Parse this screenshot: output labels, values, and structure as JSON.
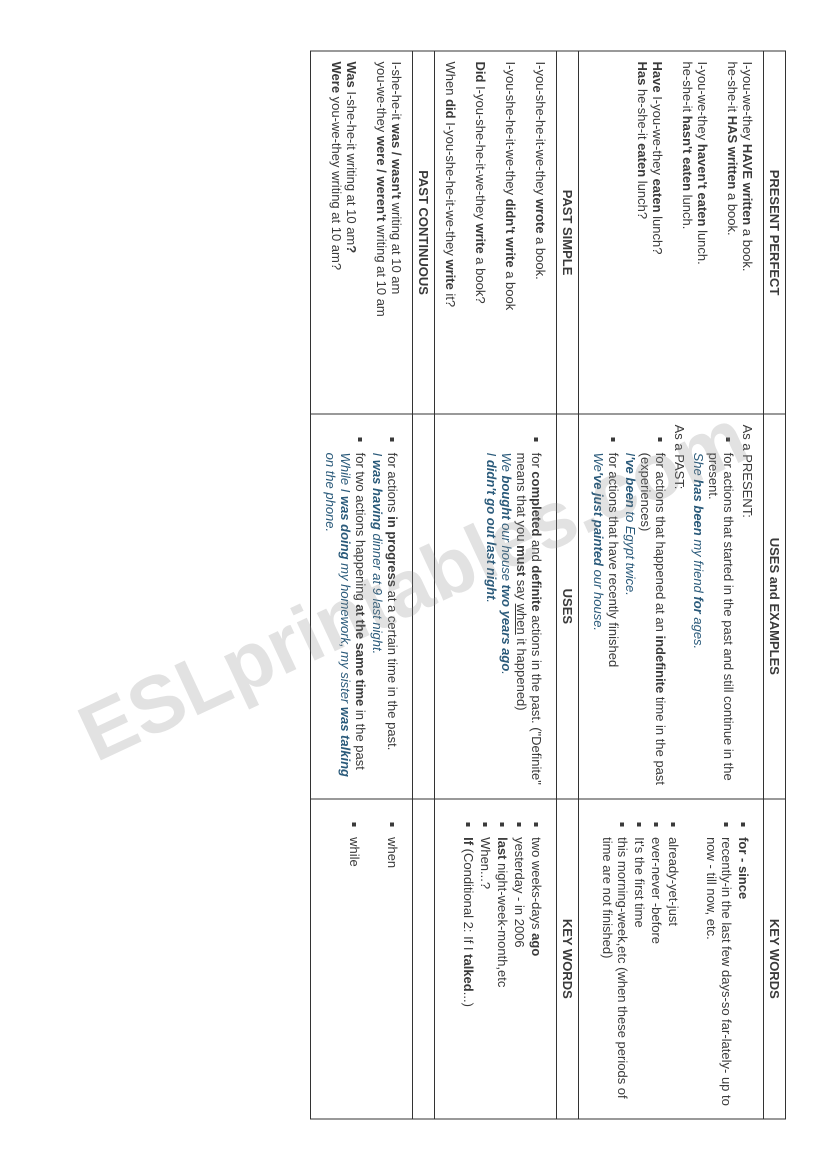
{
  "watermark": "ESLprintables.com",
  "headers": {
    "col1": "PRESENT PERFECT",
    "col2": "USES and EXAMPLES",
    "col3": "KEY WORDS"
  },
  "present_perfect": {
    "forms_line1a": "I-you-we-they ",
    "forms_line1b": "HAVE written",
    "forms_line1c": " a book.",
    "forms_line2a": "he-she-it ",
    "forms_line2b": "HAS written",
    "forms_line2c": " a book.",
    "forms_line3a": "I-you-we-they ",
    "forms_line3b": "haven't eaten",
    "forms_line3c": " lunch.",
    "forms_line4a": "he-she-it ",
    "forms_line4b": "hasn't eaten",
    "forms_line4c": " lunch.",
    "forms_line5a": "Have",
    "forms_line5b": " I-you-we-they ",
    "forms_line5c": "eaten",
    "forms_line5d": " lunch?",
    "forms_line6a": "Has",
    "forms_line6b": " he-she-it ",
    "forms_line6c": "eaten",
    "forms_line6d": " lunch?",
    "uses_intro1": "As a PRESENT:",
    "uses_bullet1": "for actions that started in the past and still continue in the present.",
    "uses_ex1a": "She ",
    "uses_ex1b": "has been",
    "uses_ex1c": " my friend ",
    "uses_ex1d": "for",
    "uses_ex1e": " ages.",
    "uses_intro2": "As a PAST:",
    "uses_bullet2a": "for actions that happened at an ",
    "uses_bullet2b": "indefinite",
    "uses_bullet2c": " time in the past (experiences)",
    "uses_ex2a": "I",
    "uses_ex2b": "'ve been",
    "uses_ex2c": " to Egypt twice.",
    "uses_bullet3": "for actions that have recently finished",
    "uses_ex3a": "We",
    "uses_ex3b": "'ve just painted",
    "uses_ex3c": " our house.",
    "key_b1a": "for - since",
    "key_b2": "recently-in the last few days-so far-lately- up to now - till now, etc.",
    "key_b3": "already-yet-just",
    "key_b4": "ever-never -before",
    "key_b5": "It's the first time",
    "key_b6": "this morning-week,etc (when these periods of time are not finished)"
  },
  "past_simple_header": {
    "col1": "PAST SIMPLE",
    "col2": "USES",
    "col3": "KEY WORDS"
  },
  "past_simple": {
    "forms_line1a": "I-you-she-he-it-we-they ",
    "forms_line1b": "wrote",
    "forms_line1c": " a book.",
    "forms_line2a": "I-you-she-he-it-we-they ",
    "forms_line2b": "didn't write",
    "forms_line2c": " a book",
    "forms_line3a": "Did",
    "forms_line3b": "  I-you-she-he-it-we-they ",
    "forms_line3c": "write",
    "forms_line3d": " a book?",
    "forms_line4a": "When ",
    "forms_line4b": "did",
    "forms_line4c": "  I-you-she-he-it-we-they ",
    "forms_line4d": "write",
    "forms_line4e": " it?",
    "uses_b1a": "for ",
    "uses_b1b": "completed",
    "uses_b1c": " and ",
    "uses_b1d": "definite",
    "uses_b1e": " actions in the past. (\"Definite\" means that you ",
    "uses_b1f": "must",
    "uses_b1g": " say ",
    "uses_b1h": "when",
    "uses_b1i": " it happened)",
    "uses_ex1a": "We ",
    "uses_ex1b": "bought",
    "uses_ex1c": " our house ",
    "uses_ex1d": "two years ago",
    "uses_ex1e": ".",
    "uses_ex2a": "I ",
    "uses_ex2b": "didn't go out last night",
    "uses_ex2c": ".",
    "key_b1a": "two weeks-days ",
    "key_b1b": "ago",
    "key_b2": "yesterday - in 2006",
    "key_b3a": "last",
    "key_b3b": " night-week-month,etc",
    "key_b4": "When...?",
    "key_b5a": "If",
    "key_b5b": " (Conditional 2: If I ",
    "key_b5c": "talked",
    "key_b5d": "...)"
  },
  "past_continuous_header": {
    "col1": "PAST CONTINUOUS"
  },
  "past_continuous": {
    "forms_line1a": "I-she-he-it ",
    "forms_line1b": "was / wasn't",
    "forms_line1c": "  writing at 10 am",
    "forms_line2a": "you-we-they ",
    "forms_line2b": "were / weren't",
    "forms_line2c": " writing at 10 am",
    "forms_line3a": "Was",
    "forms_line3b": " I-she-he-it  writing at 10 am",
    "forms_line3c": "?",
    "forms_line4a": "Were",
    "forms_line4b": " you-we-they  writing at 10 am?",
    "uses_b1a": "for actions ",
    "uses_b1b": "in progress",
    "uses_b1c": " at a certain time in the past.",
    "uses_ex1a": "I ",
    "uses_ex1b": "was having",
    "uses_ex1c": " dinner at 9 last night.",
    "uses_b2a": "for two actions happening ",
    "uses_b2b": "at the same time",
    "uses_b2c": " in the past",
    "uses_ex2a": "While I ",
    "uses_ex2b": "was doing",
    "uses_ex2c": " my homework, my sister ",
    "uses_ex2d": "was talking",
    "uses_ex2e": " on the phone.",
    "key_b1": "when",
    "key_b2": "while"
  }
}
